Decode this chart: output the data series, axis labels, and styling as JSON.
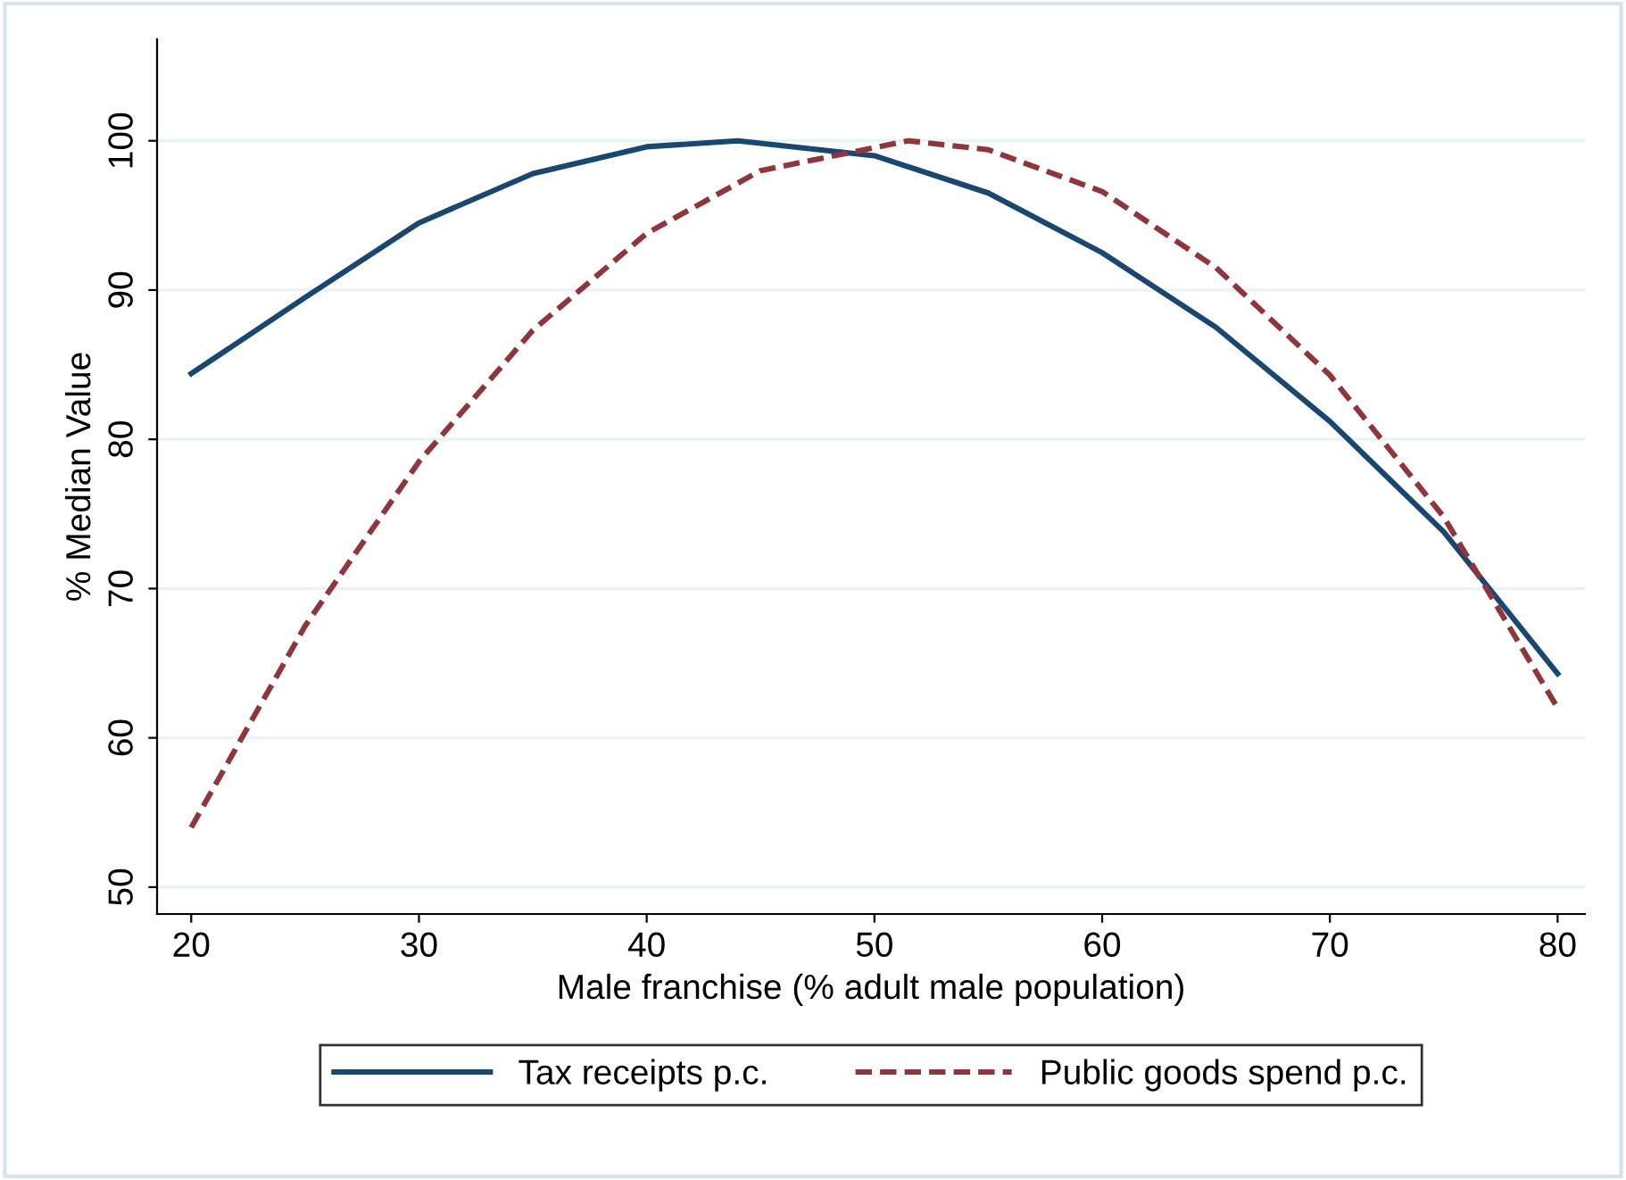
{
  "chart_data": {
    "type": "line",
    "xlabel": "Male franchise (% adult male population)",
    "ylabel": "% Median Value",
    "xlim": [
      18.5,
      81.2
    ],
    "ylim": [
      48.2,
      106.8
    ],
    "xticks": [
      20,
      30,
      40,
      50,
      60,
      70,
      80
    ],
    "yticks": [
      50,
      60,
      70,
      80,
      90,
      100
    ],
    "grid": "y",
    "legend": "bottom",
    "series": [
      {
        "name": "Tax receipts p.c.",
        "color": "#1a476f",
        "line_style": "solid",
        "x": [
          20,
          25,
          30,
          35,
          40,
          44,
          50,
          55,
          60,
          65,
          70,
          75,
          80
        ],
        "values": [
          84.4,
          89.5,
          94.5,
          97.8,
          99.6,
          100,
          99,
          96.5,
          92.5,
          87.5,
          81.2,
          73.8,
          64.3
        ]
      },
      {
        "name": "Public goods spend p.c.",
        "color": "#90353b",
        "line_style": "dashed",
        "x": [
          20,
          25,
          30,
          35,
          40,
          45,
          51.5,
          55,
          60,
          65,
          70,
          75,
          80
        ],
        "values": [
          54,
          67.5,
          78.5,
          87.3,
          93.8,
          98,
          100,
          99.4,
          96.6,
          91.5,
          84.3,
          74.8,
          62
        ]
      }
    ]
  }
}
